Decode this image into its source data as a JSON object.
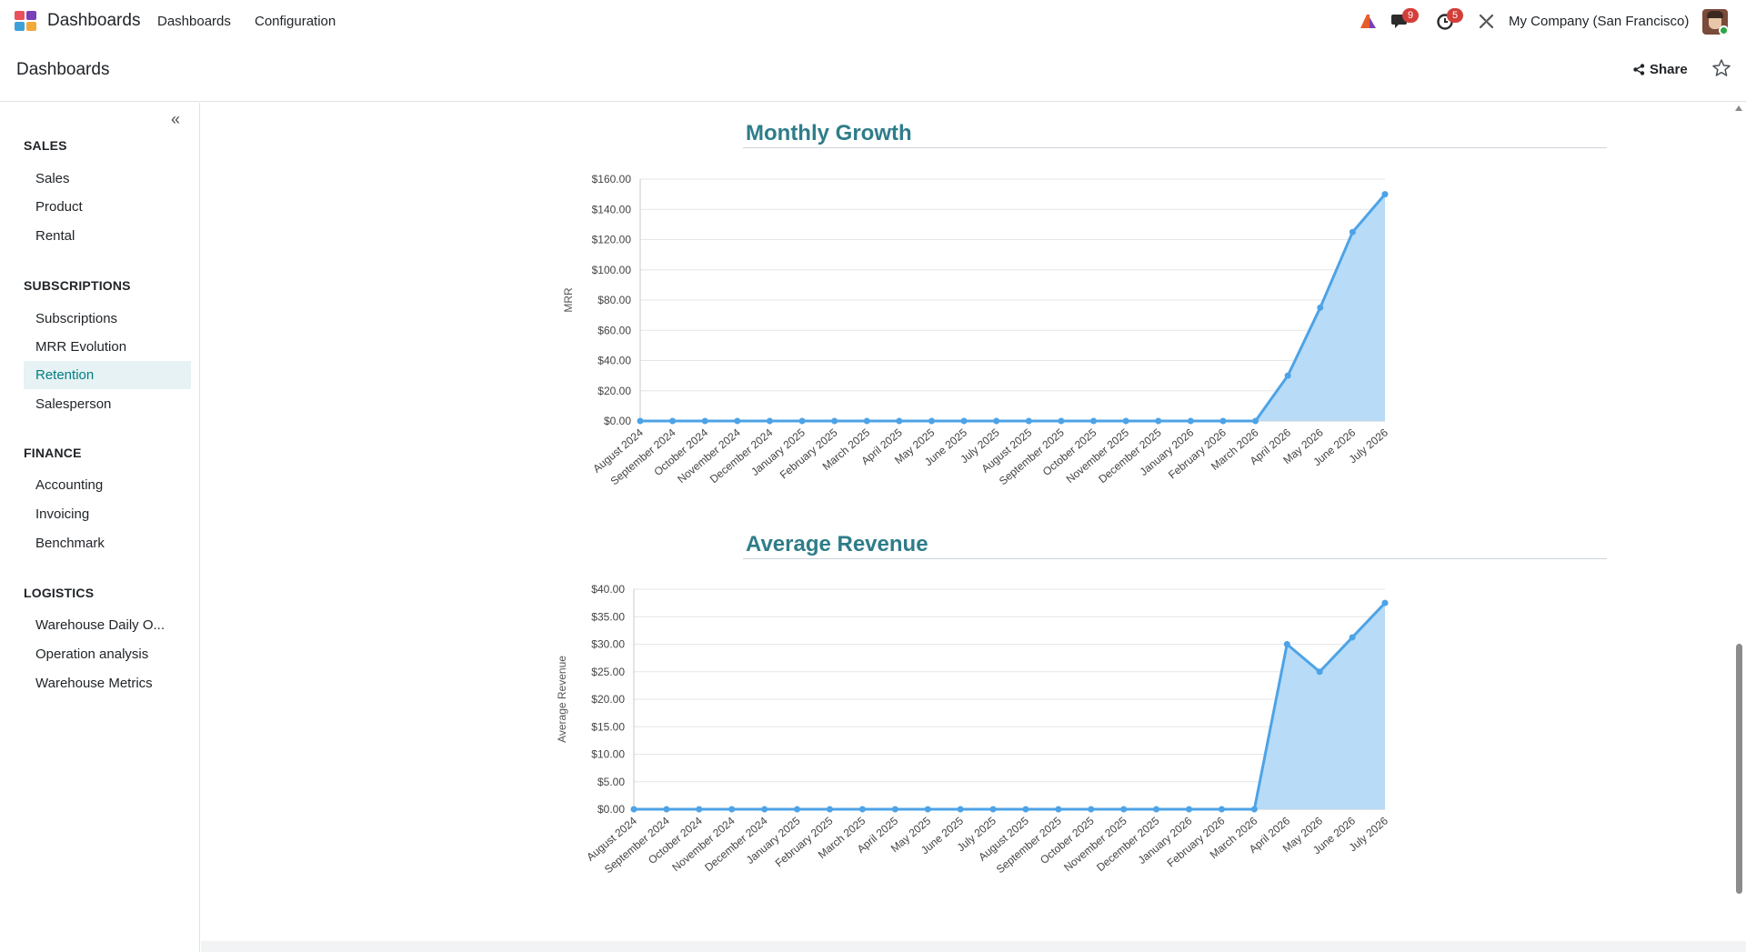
{
  "navbar": {
    "app_name": "Dashboards",
    "menus": [
      "Dashboards",
      "Configuration"
    ],
    "messages_badge": "9",
    "activities_badge": "5",
    "company": "My Company (San Francisco)"
  },
  "control_panel": {
    "breadcrumb": "Dashboards",
    "share_label": "Share"
  },
  "sidebar": {
    "sections": [
      {
        "title": "SALES",
        "items": [
          "Sales",
          "Product",
          "Rental"
        ]
      },
      {
        "title": "SUBSCRIPTIONS",
        "items": [
          "Subscriptions",
          "MRR Evolution",
          "Retention",
          "Salesperson"
        ]
      },
      {
        "title": "FINANCE",
        "items": [
          "Accounting",
          "Invoicing",
          "Benchmark"
        ]
      },
      {
        "title": "LOGISTICS",
        "items": [
          "Warehouse Daily O...",
          "Operation analysis",
          "Warehouse Metrics"
        ]
      }
    ],
    "active_item": "Retention"
  },
  "colors": {
    "accent": "#017e84",
    "chart_title": "#2e7d89",
    "line": "#4da3e6",
    "fill": "#b8dbf7"
  },
  "chart_data": [
    {
      "type": "area",
      "title": "Monthly Growth",
      "xlabel": "",
      "ylabel": "MRR",
      "categories": [
        "August 2024",
        "September 2024",
        "October 2024",
        "November 2024",
        "December 2024",
        "January 2025",
        "February 2025",
        "March 2025",
        "April 2025",
        "May 2025",
        "June 2025",
        "July 2025",
        "August 2025",
        "September 2025",
        "October 2025",
        "November 2025",
        "December 2025",
        "January 2026",
        "February 2026",
        "March 2026",
        "April 2026",
        "May 2026",
        "June 2026",
        "July 2026"
      ],
      "values": [
        0,
        0,
        0,
        0,
        0,
        0,
        0,
        0,
        0,
        0,
        0,
        0,
        0,
        0,
        0,
        0,
        0,
        0,
        0,
        0,
        30,
        75,
        125,
        150
      ],
      "ylim": [
        0,
        160
      ],
      "yticks": [
        "$0.00",
        "$20.00",
        "$40.00",
        "$60.00",
        "$80.00",
        "$100.00",
        "$120.00",
        "$140.00",
        "$160.00"
      ],
      "grid": true,
      "legend": "none"
    },
    {
      "type": "area",
      "title": "Average Revenue",
      "xlabel": "",
      "ylabel": "Average Revenue",
      "categories": [
        "August 2024",
        "September 2024",
        "October 2024",
        "November 2024",
        "December 2024",
        "January 2025",
        "February 2025",
        "March 2025",
        "April 2025",
        "May 2025",
        "June 2025",
        "July 2025",
        "August 2025",
        "September 2025",
        "October 2025",
        "November 2025",
        "December 2025",
        "January 2026",
        "February 2026",
        "March 2026",
        "April 2026",
        "May 2026",
        "June 2026",
        "July 2026"
      ],
      "values": [
        0,
        0,
        0,
        0,
        0,
        0,
        0,
        0,
        0,
        0,
        0,
        0,
        0,
        0,
        0,
        0,
        0,
        0,
        0,
        0,
        30,
        25,
        31.25,
        37.5
      ],
      "ylim": [
        0,
        40
      ],
      "yticks": [
        "$0.00",
        "$5.00",
        "$10.00",
        "$15.00",
        "$20.00",
        "$25.00",
        "$30.00",
        "$35.00",
        "$40.00"
      ],
      "grid": true,
      "legend": "none"
    }
  ]
}
